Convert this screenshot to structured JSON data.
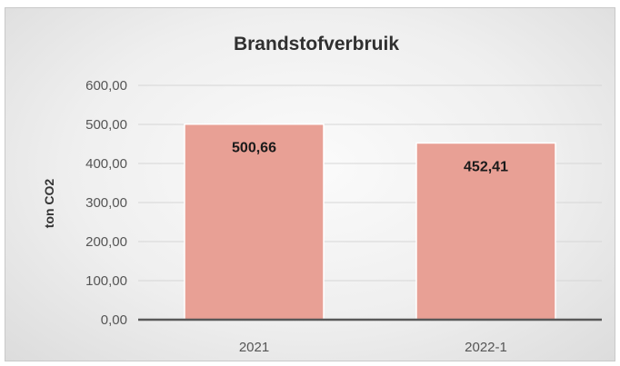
{
  "chart_data": {
    "type": "bar",
    "title": "Brandstofverbruik",
    "xlabel": "",
    "ylabel": "ton CO2",
    "categories": [
      "2021",
      "2022-1"
    ],
    "values": [
      500.66,
      452.41
    ],
    "data_labels": [
      "500,66",
      "452,41"
    ],
    "ylim": [
      0,
      600
    ],
    "y_ticks": [
      0,
      100,
      200,
      300,
      400,
      500,
      600
    ],
    "y_tick_labels": [
      "0,00",
      "100,00",
      "200,00",
      "300,00",
      "400,00",
      "500,00",
      "600,00"
    ],
    "grid": true,
    "legend": "none",
    "colors": {
      "bar": "#e8a095",
      "bar_edge": "#ffffff",
      "gridline": "#d6d6d6",
      "axis": "#595959",
      "background": "#efefef"
    }
  }
}
